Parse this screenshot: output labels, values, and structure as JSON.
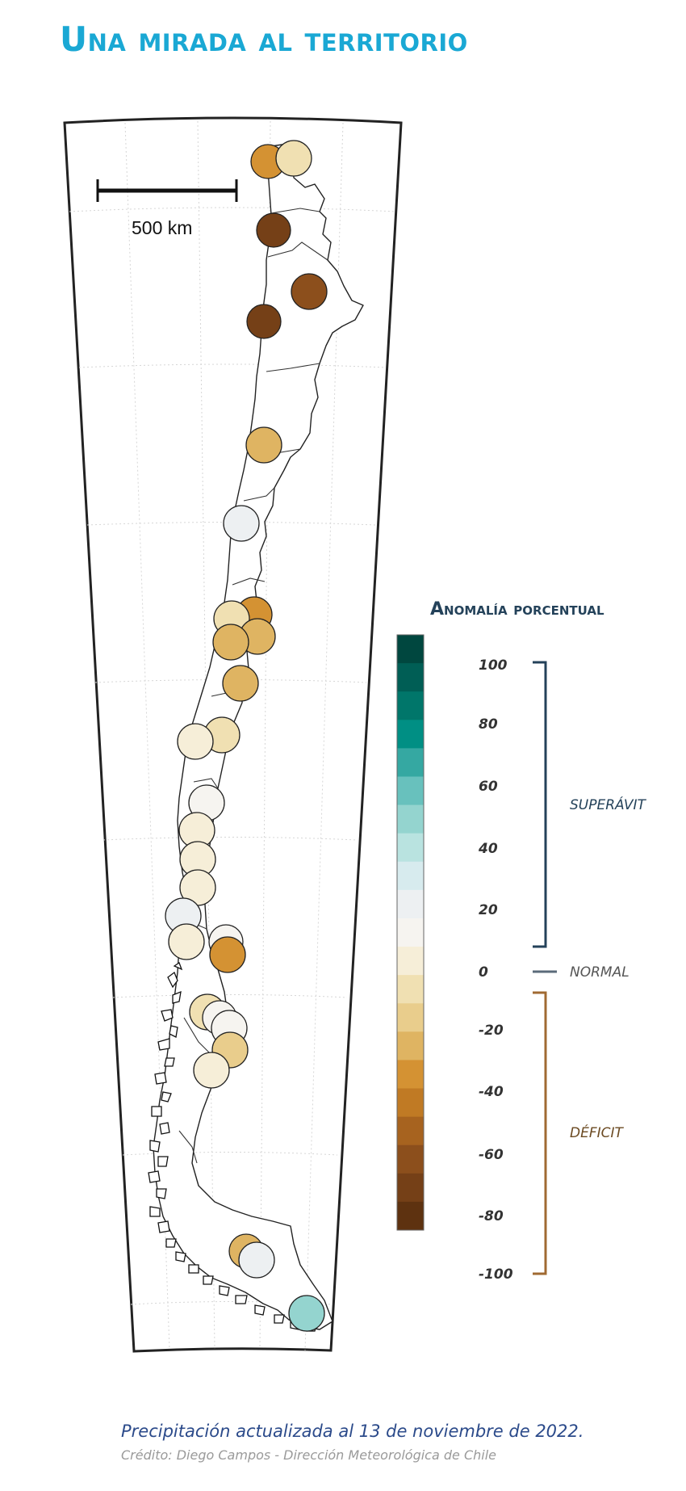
{
  "title": "Una mirada al territorio",
  "map": {
    "scale_label": "500 km",
    "stations_anomaly_percent": [
      -50,
      -15,
      -90,
      -80,
      -90,
      -35,
      15,
      -50,
      -15,
      -40,
      -35,
      -35,
      -5,
      -15,
      5,
      -5,
      -5,
      -5,
      15,
      -5,
      5,
      -50,
      -20,
      5,
      -25,
      -10,
      -35,
      15,
      45
    ]
  },
  "legend": {
    "title": "Anomalía porcentual",
    "ticks": [
      "100",
      "80",
      "60",
      "40",
      "20",
      "0",
      "-20",
      "-40",
      "-60",
      "-80",
      "-100"
    ],
    "superavit_label": "SUPERÁVIT",
    "normal_label": "NORMAL",
    "deficit_label": "DÉFICIT",
    "colors": [
      "#00473f",
      "#005e55",
      "#00766a",
      "#008f84",
      "#35a8a2",
      "#68c1bd",
      "#94d4cf",
      "#b9e3e0",
      "#d7ebee",
      "#edf0f2",
      "#f6f4f0",
      "#f6eed8",
      "#f0e0b2",
      "#e9cd8c",
      "#dfb462",
      "#d49233",
      "#c07a24",
      "#a7631f",
      "#8c4f1c",
      "#754017",
      "#5e3210"
    ],
    "superavit_color": "#24425a",
    "deficit_color": "#8b5a2b"
  },
  "footer": {
    "caption": "Precipitación actualizada al 13 de noviembre de 2022.",
    "credit": "Crédito: Diego Campos - Dirección Meteorológica de Chile"
  }
}
